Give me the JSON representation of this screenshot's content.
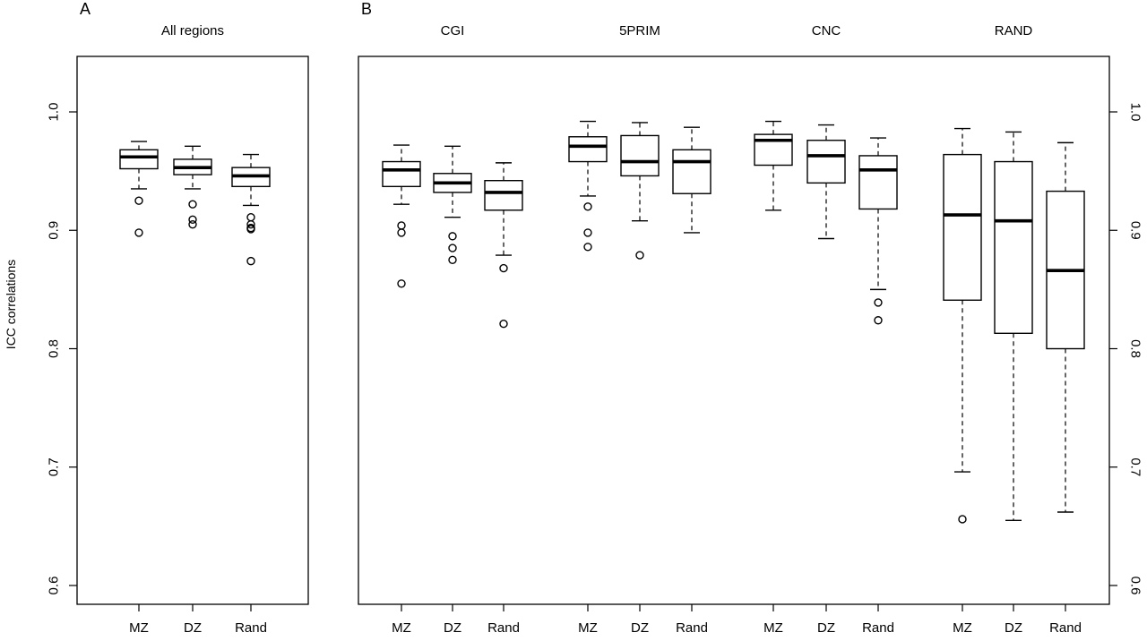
{
  "chart_data": [
    {
      "panel_label": "A",
      "type": "box",
      "ylabel": "ICC correlations",
      "ylim": [
        0.6,
        1.0
      ],
      "yticks": [
        0.6,
        0.7,
        0.8,
        0.9,
        1.0
      ],
      "ytick_labels": [
        "0.6",
        "0.7",
        "0.8",
        "0.9",
        "1.0"
      ],
      "yaxis_side": "left",
      "groups": [
        {
          "title": "All regions",
          "boxes": [
            {
              "label": "MZ",
              "whisker_low": 0.935,
              "q1": 0.952,
              "median": 0.962,
              "q3": 0.968,
              "whisker_high": 0.975,
              "outliers": [
                0.925,
                0.898
              ]
            },
            {
              "label": "DZ",
              "whisker_low": 0.935,
              "q1": 0.947,
              "median": 0.953,
              "q3": 0.96,
              "whisker_high": 0.971,
              "outliers": [
                0.922,
                0.909,
                0.905
              ]
            },
            {
              "label": "Rand",
              "whisker_low": 0.921,
              "q1": 0.937,
              "median": 0.946,
              "q3": 0.953,
              "whisker_high": 0.964,
              "outliers": [
                0.911,
                0.905,
                0.902,
                0.901,
                0.874
              ]
            }
          ]
        }
      ]
    },
    {
      "panel_label": "B",
      "type": "box",
      "ylim": [
        0.6,
        1.0
      ],
      "yticks": [
        0.6,
        0.7,
        0.8,
        0.9,
        1.0
      ],
      "ytick_labels": [
        "0.6",
        "0.7",
        "0.8",
        "0.9",
        "1.0"
      ],
      "yaxis_side": "right",
      "groups": [
        {
          "title": "CGI",
          "boxes": [
            {
              "label": "MZ",
              "whisker_low": 0.922,
              "q1": 0.937,
              "median": 0.951,
              "q3": 0.958,
              "whisker_high": 0.972,
              "outliers": [
                0.904,
                0.898,
                0.855
              ]
            },
            {
              "label": "DZ",
              "whisker_low": 0.911,
              "q1": 0.932,
              "median": 0.94,
              "q3": 0.948,
              "whisker_high": 0.971,
              "outliers": [
                0.895,
                0.885,
                0.875
              ]
            },
            {
              "label": "Rand",
              "whisker_low": 0.879,
              "q1": 0.917,
              "median": 0.932,
              "q3": 0.942,
              "whisker_high": 0.957,
              "outliers": [
                0.868,
                0.821
              ]
            }
          ]
        },
        {
          "title": "5PRIM",
          "boxes": [
            {
              "label": "MZ",
              "whisker_low": 0.929,
              "q1": 0.958,
              "median": 0.971,
              "q3": 0.979,
              "whisker_high": 0.992,
              "outliers": [
                0.92,
                0.898,
                0.886
              ]
            },
            {
              "label": "DZ",
              "whisker_low": 0.908,
              "q1": 0.946,
              "median": 0.958,
              "q3": 0.98,
              "whisker_high": 0.991,
              "outliers": [
                0.879
              ]
            },
            {
              "label": "Rand",
              "whisker_low": 0.898,
              "q1": 0.931,
              "median": 0.958,
              "q3": 0.968,
              "whisker_high": 0.987,
              "outliers": []
            }
          ]
        },
        {
          "title": "CNC",
          "boxes": [
            {
              "label": "MZ",
              "whisker_low": 0.917,
              "q1": 0.955,
              "median": 0.976,
              "q3": 0.981,
              "whisker_high": 0.992,
              "outliers": []
            },
            {
              "label": "DZ",
              "whisker_low": 0.893,
              "q1": 0.94,
              "median": 0.963,
              "q3": 0.976,
              "whisker_high": 0.989,
              "outliers": []
            },
            {
              "label": "Rand",
              "whisker_low": 0.85,
              "q1": 0.918,
              "median": 0.951,
              "q3": 0.963,
              "whisker_high": 0.978,
              "outliers": [
                0.839,
                0.824
              ]
            }
          ]
        },
        {
          "title": "RAND",
          "boxes": [
            {
              "label": "MZ",
              "whisker_low": 0.696,
              "q1": 0.841,
              "median": 0.913,
              "q3": 0.964,
              "whisker_high": 0.986,
              "outliers": [
                0.656
              ]
            },
            {
              "label": "DZ",
              "whisker_low": 0.655,
              "q1": 0.813,
              "median": 0.908,
              "q3": 0.958,
              "whisker_high": 0.983,
              "outliers": []
            },
            {
              "label": "Rand",
              "whisker_low": 0.662,
              "q1": 0.8,
              "median": 0.866,
              "q3": 0.933,
              "whisker_high": 0.974,
              "outliers": []
            }
          ]
        }
      ]
    }
  ]
}
